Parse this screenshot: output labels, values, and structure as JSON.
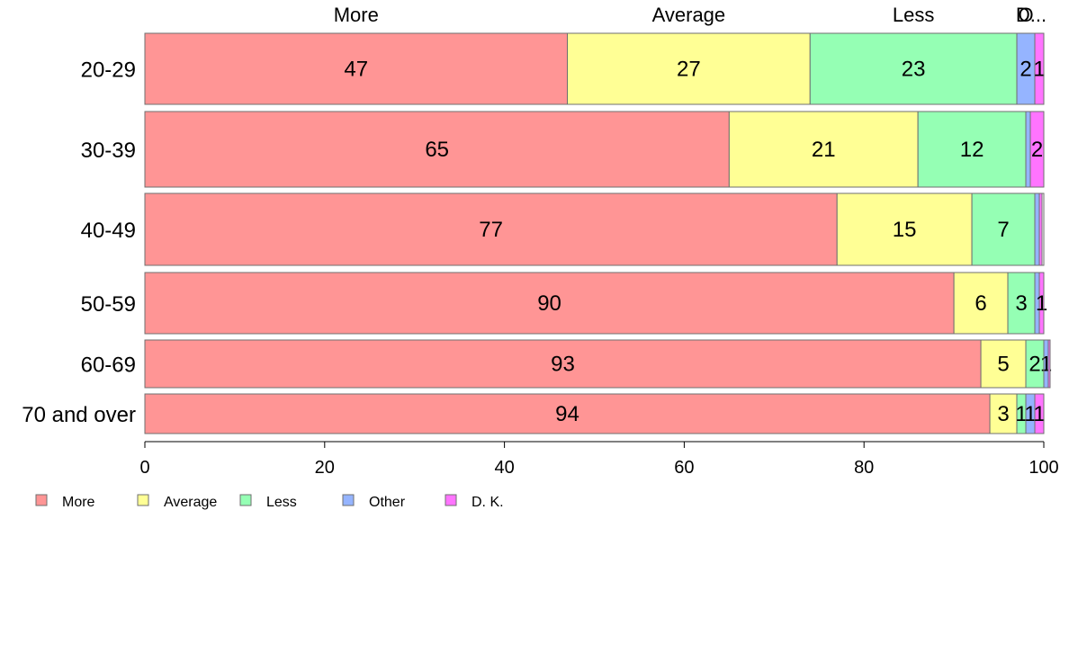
{
  "chart_data": {
    "type": "bar",
    "orientation": "horizontal",
    "stacked": true,
    "title": "",
    "xlabel": "",
    "ylabel": "",
    "xlim": [
      0,
      100
    ],
    "x_ticks": [
      0,
      20,
      40,
      60,
      80,
      100
    ],
    "grid": false,
    "legend_position": "bottom-left",
    "categories": [
      "20-29",
      "30-39",
      "40-49",
      "50-59",
      "60-69",
      "70 and over"
    ],
    "series": [
      {
        "name": "More",
        "color": "#ff9595",
        "values": [
          47,
          65,
          77,
          90,
          93,
          94
        ],
        "value_labels": [
          "47",
          "65",
          "77",
          "90",
          "93",
          "94"
        ]
      },
      {
        "name": "Average",
        "color": "#ffff95",
        "values": [
          27,
          21,
          15,
          6,
          5,
          3
        ],
        "value_labels": [
          "27",
          "21",
          "15",
          "6",
          "5",
          "3"
        ]
      },
      {
        "name": "Less",
        "color": "#95ffb4",
        "values": [
          23,
          12,
          7,
          3,
          2,
          1
        ],
        "value_labels": [
          "23",
          "12",
          "7",
          "3",
          "2",
          "1"
        ]
      },
      {
        "name": "Other",
        "color": "#95b4ff",
        "values": [
          2,
          0.5,
          0.5,
          0.5,
          0.5,
          1
        ],
        "value_labels": [
          "2",
          "",
          "",
          "",
          "1",
          "1"
        ]
      },
      {
        "name": "D. K.",
        "color": "#ff74ff",
        "values": [
          1,
          1.5,
          0.3,
          0.5,
          0.2,
          1
        ],
        "value_labels": [
          "1",
          "2",
          "",
          "1",
          "",
          "1"
        ]
      }
    ],
    "top_labels": [
      "More",
      "Average",
      "Less",
      "O",
      "D..."
    ]
  }
}
